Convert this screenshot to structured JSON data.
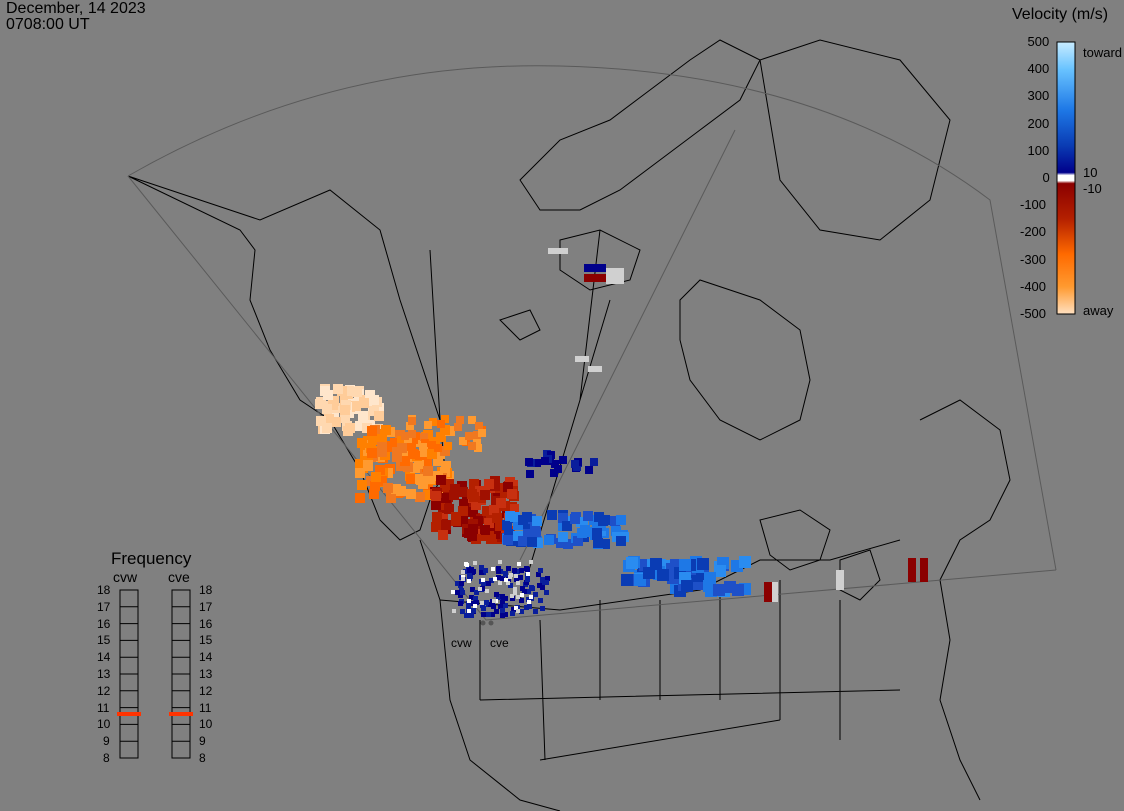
{
  "header": {
    "date": "December, 14 2023",
    "time": "0708:00 UT"
  },
  "colorbar": {
    "title": "Velocity (m/s)",
    "ticks": [
      "500",
      "400",
      "300",
      "200",
      "100",
      "0",
      "-100",
      "-200",
      "-300",
      "-400",
      "-500"
    ],
    "toward_label": "toward",
    "away_label": "away",
    "near_zero_pos": "10",
    "near_zero_neg": "-10"
  },
  "frequency": {
    "title": "Frequency",
    "radars": [
      "cvw",
      "cve"
    ],
    "scale": [
      "18",
      "17",
      "16",
      "15",
      "14",
      "13",
      "12",
      "11",
      "10",
      "9",
      "8"
    ],
    "selected_mhz": {
      "cvw": 11,
      "cve": 11
    },
    "marker_color": "#ff3300"
  },
  "radar_sites": [
    "cvw",
    "cve"
  ],
  "colors": {
    "background": "#808080",
    "toward_light": "#c8ecff",
    "toward_dark": "#00008b",
    "away_dark": "#8b0000",
    "away_light": "#ffe0c0"
  }
}
